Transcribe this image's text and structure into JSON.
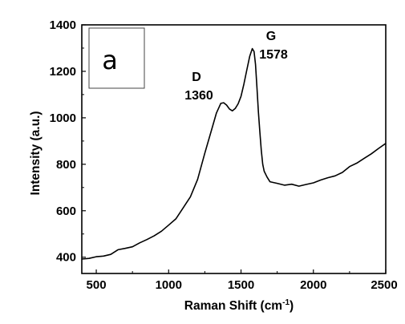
{
  "chart_data": {
    "type": "line",
    "title": "",
    "panel_label": "a",
    "xlabel": "Raman Shift (cm",
    "xlabel_sup": "-1",
    "xlabel_tail": ")",
    "ylabel": "Intensity (a.u.)",
    "xlim": [
      400,
      2500
    ],
    "ylim": [
      330,
      1400
    ],
    "x_ticks": [
      500,
      1000,
      1500,
      2000,
      2500
    ],
    "y_ticks": [
      400,
      600,
      800,
      1000,
      1200,
      1400
    ],
    "grid": false,
    "annotations": [
      {
        "name": "D",
        "label": "D",
        "value": "1360"
      },
      {
        "name": "G",
        "label": "G",
        "value": "1578"
      }
    ],
    "series": [
      {
        "color": "#000000",
        "x": [
          400,
          450,
          500,
          550,
          600,
          650,
          700,
          750,
          800,
          850,
          900,
          950,
          1000,
          1050,
          1100,
          1150,
          1200,
          1250,
          1300,
          1330,
          1360,
          1380,
          1400,
          1420,
          1440,
          1460,
          1480,
          1500,
          1520,
          1540,
          1560,
          1578,
          1590,
          1600,
          1610,
          1620,
          1630,
          1640,
          1650,
          1660,
          1680,
          1700,
          1750,
          1800,
          1850,
          1900,
          1950,
          2000,
          2050,
          2100,
          2150,
          2200,
          2250,
          2300,
          2350,
          2400,
          2450,
          2500
        ],
        "y": [
          392,
          395,
          402,
          405,
          412,
          432,
          438,
          445,
          462,
          476,
          492,
          512,
          538,
          565,
          612,
          660,
          735,
          848,
          955,
          1020,
          1062,
          1065,
          1055,
          1038,
          1030,
          1040,
          1060,
          1092,
          1145,
          1205,
          1265,
          1298,
          1285,
          1230,
          1130,
          1025,
          940,
          860,
          800,
          770,
          745,
          725,
          718,
          710,
          714,
          706,
          713,
          720,
          732,
          742,
          750,
          765,
          790,
          805,
          825,
          845,
          868,
          890
        ]
      }
    ]
  }
}
